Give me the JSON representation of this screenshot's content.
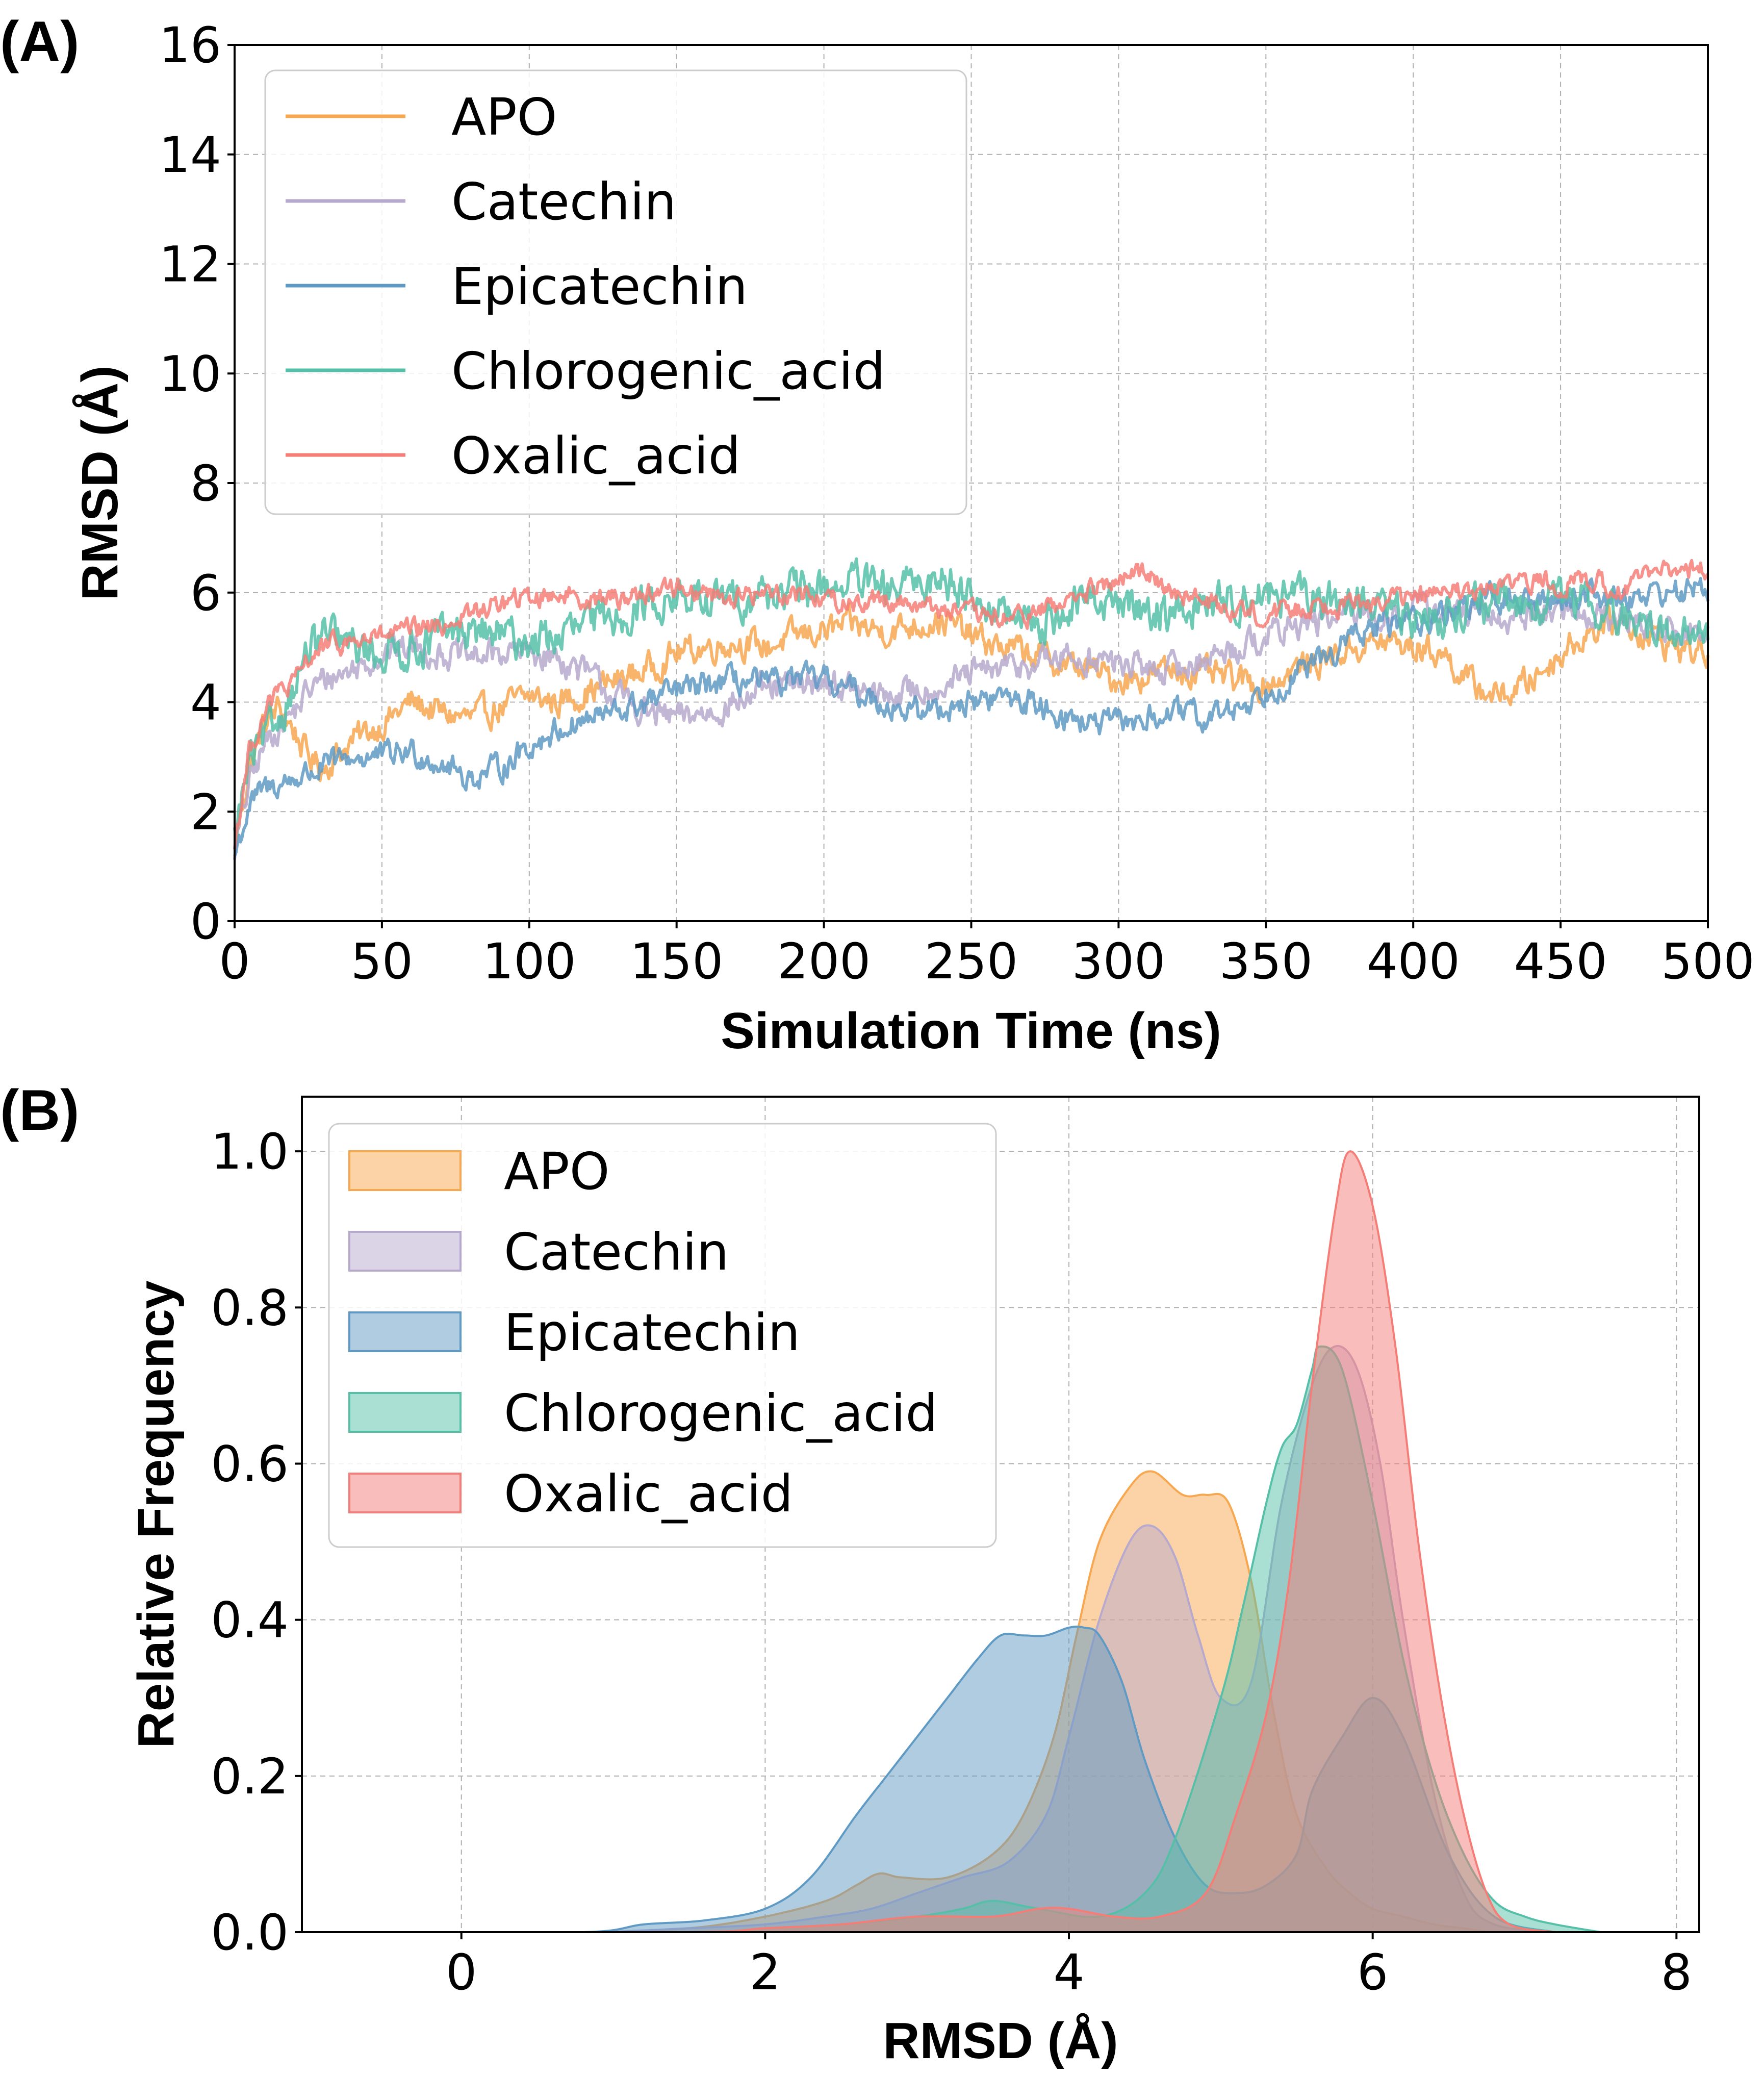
{
  "colors": {
    "APO": "#F7A750",
    "Catechin": "#B7A9CE",
    "Epicatechin": "#5F9AC4",
    "Chlorogenic_acid": "#55BFA8",
    "Oxalic_acid": "#F47E77"
  },
  "chart_data": [
    {
      "panel_label": "(A)",
      "type": "line",
      "title": "",
      "xlabel": "Simulation Time (ns)",
      "ylabel": "RMSD (Å)",
      "xlim": [
        0,
        500
      ],
      "ylim": [
        0,
        16
      ],
      "xticks": [
        0,
        50,
        100,
        150,
        200,
        250,
        300,
        350,
        400,
        450,
        500
      ],
      "yticks": [
        0,
        2,
        4,
        6,
        8,
        10,
        12,
        14,
        16
      ],
      "grid": true,
      "legend_position": "top-left",
      "legend": [
        "APO",
        "Catechin",
        "Epicatechin",
        "Chlorogenic_acid",
        "Oxalic_acid"
      ],
      "series": [
        {
          "name": "APO",
          "noise": 0.22,
          "x": [
            0,
            5,
            10,
            15,
            20,
            25,
            30,
            40,
            50,
            60,
            70,
            80,
            90,
            100,
            110,
            120,
            130,
            140,
            150,
            160,
            170,
            180,
            190,
            200,
            210,
            220,
            230,
            240,
            250,
            260,
            270,
            280,
            290,
            300,
            310,
            320,
            330,
            340,
            350,
            360,
            370,
            380,
            390,
            400,
            410,
            420,
            430,
            440,
            450,
            460,
            470,
            480,
            490,
            500
          ],
          "y": [
            1.3,
            2.8,
            3.6,
            3.9,
            3.5,
            3.0,
            2.8,
            3.3,
            3.6,
            4.0,
            3.8,
            3.7,
            3.9,
            4.1,
            4.0,
            4.2,
            4.4,
            4.6,
            4.9,
            5.0,
            5.1,
            5.0,
            5.2,
            5.3,
            5.4,
            5.3,
            5.4,
            5.5,
            5.2,
            5.0,
            4.9,
            4.7,
            4.6,
            4.4,
            4.5,
            4.6,
            4.5,
            4.4,
            4.3,
            4.6,
            4.8,
            5.0,
            5.1,
            5.0,
            4.9,
            4.3,
            4.1,
            4.4,
            4.9,
            5.3,
            5.5,
            5.2,
            5.0,
            4.9
          ]
        },
        {
          "name": "Catechin",
          "noise": 0.22,
          "x": [
            0,
            5,
            10,
            15,
            20,
            25,
            30,
            40,
            50,
            60,
            70,
            80,
            90,
            100,
            110,
            120,
            130,
            140,
            150,
            160,
            170,
            180,
            190,
            200,
            210,
            220,
            230,
            240,
            250,
            260,
            270,
            280,
            290,
            300,
            310,
            320,
            330,
            340,
            350,
            360,
            370,
            380,
            390,
            400,
            410,
            420,
            430,
            440,
            450,
            460,
            470,
            480,
            490,
            500
          ],
          "y": [
            1.3,
            2.5,
            3.2,
            3.6,
            3.8,
            4.2,
            4.4,
            4.6,
            4.9,
            5.0,
            4.9,
            4.8,
            4.9,
            4.9,
            4.8,
            4.5,
            4.1,
            3.8,
            3.7,
            3.8,
            4.0,
            4.2,
            4.3,
            4.4,
            4.2,
            4.1,
            4.2,
            4.3,
            4.5,
            4.6,
            4.7,
            4.8,
            4.8,
            4.7,
            4.6,
            4.6,
            4.8,
            5.0,
            5.2,
            5.4,
            5.5,
            5.6,
            5.6,
            5.7,
            5.7,
            5.6,
            5.5,
            5.6,
            5.7,
            5.6,
            5.5,
            5.4,
            5.3,
            5.2
          ]
        },
        {
          "name": "Epicatechin",
          "noise": 0.2,
          "x": [
            0,
            5,
            10,
            15,
            20,
            25,
            30,
            40,
            50,
            60,
            70,
            80,
            90,
            100,
            110,
            120,
            130,
            140,
            150,
            160,
            170,
            180,
            190,
            200,
            210,
            220,
            230,
            240,
            250,
            260,
            270,
            280,
            290,
            300,
            310,
            320,
            330,
            340,
            350,
            360,
            370,
            380,
            390,
            400,
            410,
            420,
            430,
            440,
            450,
            460,
            470,
            480,
            490,
            500
          ],
          "y": [
            1.2,
            2.1,
            2.4,
            2.5,
            2.6,
            2.7,
            2.8,
            3.0,
            3.0,
            3.1,
            2.9,
            2.6,
            2.8,
            3.2,
            3.5,
            3.7,
            3.8,
            4.0,
            4.2,
            4.3,
            4.4,
            4.3,
            4.4,
            4.4,
            4.2,
            4.0,
            3.8,
            3.9,
            4.0,
            4.1,
            4.0,
            3.8,
            3.6,
            3.6,
            3.7,
            3.8,
            3.7,
            3.9,
            4.2,
            4.5,
            4.8,
            5.2,
            5.4,
            5.5,
            5.6,
            5.8,
            5.9,
            5.8,
            5.9,
            6.0,
            5.9,
            6.0,
            6.0,
            6.1
          ]
        },
        {
          "name": "Chlorogenic_acid",
          "noise": 0.3,
          "x": [
            0,
            5,
            10,
            15,
            20,
            25,
            30,
            40,
            50,
            60,
            70,
            80,
            90,
            100,
            110,
            120,
            130,
            140,
            150,
            160,
            170,
            180,
            190,
            200,
            210,
            220,
            230,
            240,
            250,
            260,
            270,
            280,
            290,
            300,
            310,
            320,
            330,
            340,
            350,
            360,
            370,
            380,
            390,
            400,
            410,
            420,
            430,
            440,
            450,
            460,
            470,
            480,
            490,
            500
          ],
          "y": [
            1.5,
            2.9,
            3.3,
            3.7,
            4.3,
            4.9,
            5.2,
            5.0,
            4.9,
            5.0,
            5.2,
            5.3,
            5.2,
            5.1,
            5.2,
            5.4,
            5.6,
            5.8,
            5.9,
            5.8,
            5.9,
            6.0,
            6.0,
            6.1,
            6.2,
            6.0,
            6.1,
            6.3,
            6.0,
            5.6,
            5.4,
            5.6,
            5.9,
            5.8,
            5.7,
            5.6,
            5.8,
            5.9,
            6.0,
            5.9,
            5.8,
            5.9,
            5.7,
            5.5,
            5.6,
            5.8,
            5.7,
            5.8,
            5.9,
            5.8,
            5.5,
            5.4,
            5.3,
            5.2
          ]
        },
        {
          "name": "Oxalic_acid",
          "noise": 0.16,
          "x": [
            0,
            5,
            10,
            15,
            20,
            25,
            30,
            40,
            50,
            60,
            70,
            80,
            90,
            100,
            110,
            120,
            130,
            140,
            150,
            160,
            170,
            180,
            190,
            200,
            210,
            220,
            230,
            240,
            250,
            260,
            270,
            280,
            290,
            300,
            310,
            320,
            330,
            340,
            350,
            360,
            370,
            380,
            390,
            400,
            410,
            420,
            430,
            440,
            450,
            460,
            470,
            480,
            490,
            500
          ],
          "y": [
            1.4,
            3.1,
            3.8,
            4.2,
            4.3,
            4.8,
            5.0,
            5.1,
            5.2,
            5.3,
            5.4,
            5.6,
            5.8,
            5.9,
            6.0,
            5.9,
            5.9,
            6.0,
            6.1,
            6.0,
            5.9,
            6.0,
            6.0,
            5.9,
            5.8,
            5.9,
            5.8,
            5.7,
            5.6,
            5.5,
            5.6,
            5.8,
            6.0,
            6.2,
            6.4,
            6.0,
            5.8,
            5.7,
            5.6,
            5.7,
            5.8,
            5.8,
            5.9,
            5.9,
            6.0,
            6.0,
            6.1,
            6.2,
            6.2,
            6.2,
            6.1,
            6.3,
            6.4,
            6.5
          ]
        }
      ]
    },
    {
      "panel_label": "(B)",
      "type": "area",
      "title": "",
      "xlabel": "RMSD (Å)",
      "ylabel": "Relative Frequency",
      "xlim": [
        -1.05,
        8.15
      ],
      "ylim": [
        0,
        1.07
      ],
      "xticks": [
        0,
        2,
        4,
        6,
        8
      ],
      "yticks": [
        0.0,
        0.2,
        0.4,
        0.6,
        0.8,
        1.0
      ],
      "ytick_labels": [
        "0.0",
        "0.2",
        "0.4",
        "0.6",
        "0.8",
        "1.0"
      ],
      "grid": true,
      "legend_position": "top-left",
      "legend": [
        "APO",
        "Catechin",
        "Epicatechin",
        "Chlorogenic_acid",
        "Oxalic_acid"
      ],
      "series": [
        {
          "name": "APO",
          "x": [
            -0.6,
            0.8,
            1.5,
            2.0,
            2.4,
            2.6,
            2.75,
            2.9,
            3.2,
            3.5,
            3.7,
            3.9,
            4.05,
            4.2,
            4.4,
            4.55,
            4.75,
            4.9,
            5.05,
            5.2,
            5.35,
            5.5,
            5.7,
            5.85,
            6.0,
            6.2,
            6.4,
            6.6,
            6.8,
            7.2
          ],
          "y": [
            0,
            0,
            0.005,
            0.02,
            0.04,
            0.06,
            0.075,
            0.07,
            0.07,
            0.1,
            0.15,
            0.25,
            0.38,
            0.5,
            0.57,
            0.59,
            0.56,
            0.56,
            0.55,
            0.45,
            0.28,
            0.15,
            0.08,
            0.05,
            0.03,
            0.02,
            0.01,
            0.005,
            0,
            0
          ]
        },
        {
          "name": "Catechin",
          "x": [
            -0.6,
            0.8,
            1.5,
            2.0,
            2.4,
            2.7,
            3.0,
            3.3,
            3.6,
            3.85,
            4.0,
            4.2,
            4.4,
            4.55,
            4.7,
            4.85,
            5.0,
            5.2,
            5.4,
            5.6,
            5.75,
            5.9,
            6.05,
            6.2,
            6.4,
            6.6,
            6.8,
            7.2
          ],
          "y": [
            0,
            0,
            0.005,
            0.01,
            0.02,
            0.03,
            0.05,
            0.07,
            0.09,
            0.15,
            0.25,
            0.4,
            0.5,
            0.52,
            0.48,
            0.38,
            0.3,
            0.32,
            0.55,
            0.7,
            0.75,
            0.72,
            0.6,
            0.4,
            0.18,
            0.05,
            0.01,
            0
          ]
        },
        {
          "name": "Epicatechin",
          "x": [
            -0.6,
            0.8,
            1.2,
            1.6,
            2.0,
            2.3,
            2.6,
            2.8,
            3.0,
            3.2,
            3.4,
            3.55,
            3.7,
            3.85,
            4.0,
            4.1,
            4.2,
            4.35,
            4.5,
            4.7,
            4.9,
            5.1,
            5.3,
            5.5,
            5.6,
            5.8,
            6.0,
            6.2,
            6.5,
            6.8,
            7.2
          ],
          "y": [
            0,
            0,
            0.01,
            0.015,
            0.03,
            0.07,
            0.15,
            0.2,
            0.25,
            0.3,
            0.35,
            0.38,
            0.38,
            0.38,
            0.39,
            0.39,
            0.38,
            0.32,
            0.22,
            0.12,
            0.06,
            0.05,
            0.06,
            0.1,
            0.18,
            0.25,
            0.3,
            0.25,
            0.1,
            0.02,
            0
          ]
        },
        {
          "name": "Chlorogenic_acid",
          "x": [
            -0.6,
            1.5,
            2.0,
            2.5,
            3.0,
            3.3,
            3.5,
            3.8,
            4.2,
            4.5,
            4.7,
            5.0,
            5.15,
            5.3,
            5.4,
            5.5,
            5.6,
            5.65,
            5.8,
            6.0,
            6.2,
            6.4,
            6.6,
            6.8,
            7.0,
            7.2,
            7.5
          ],
          "y": [
            0,
            0,
            0.005,
            0.01,
            0.02,
            0.03,
            0.04,
            0.03,
            0.02,
            0.05,
            0.12,
            0.3,
            0.42,
            0.55,
            0.62,
            0.65,
            0.72,
            0.75,
            0.72,
            0.55,
            0.35,
            0.2,
            0.1,
            0.04,
            0.02,
            0.01,
            0
          ]
        },
        {
          "name": "Oxalic_acid",
          "x": [
            -0.6,
            1.5,
            2.0,
            2.5,
            3.0,
            3.5,
            3.8,
            4.0,
            4.3,
            4.6,
            4.9,
            5.1,
            5.3,
            5.45,
            5.6,
            5.75,
            5.85,
            6.0,
            6.15,
            6.3,
            6.45,
            6.6,
            6.75,
            6.9,
            7.2
          ],
          "y": [
            0,
            0,
            0.005,
            0.01,
            0.02,
            0.02,
            0.03,
            0.03,
            0.02,
            0.02,
            0.05,
            0.15,
            0.28,
            0.45,
            0.7,
            0.92,
            1.0,
            0.93,
            0.75,
            0.5,
            0.3,
            0.15,
            0.05,
            0.01,
            0
          ]
        }
      ]
    }
  ]
}
